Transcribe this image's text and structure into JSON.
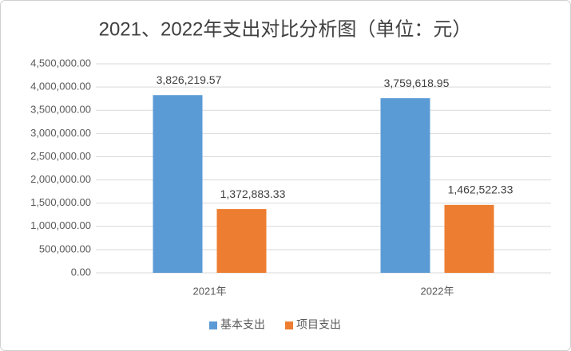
{
  "chart_data": {
    "type": "bar",
    "title": "2021、2022年支出对比分析图（单位：元）",
    "categories": [
      "2021年",
      "2022年"
    ],
    "series": [
      {
        "name": "基本支出",
        "color": "#5b9bd5",
        "values": [
          3826219.57,
          3759618.95
        ],
        "value_labels": [
          "3,826,219.57",
          "3,759,618.95"
        ]
      },
      {
        "name": "项目支出",
        "color": "#ed7d31",
        "values": [
          1372883.33,
          1462522.33
        ],
        "value_labels": [
          "1,372,883.33",
          "1,462,522.33"
        ]
      }
    ],
    "ylim": [
      0,
      4500000
    ],
    "yticks": [
      {
        "value": 0,
        "label": "0.00"
      },
      {
        "value": 500000,
        "label": "500,000.00"
      },
      {
        "value": 1000000,
        "label": "1,000,000.00"
      },
      {
        "value": 1500000,
        "label": "1,500,000.00"
      },
      {
        "value": 2000000,
        "label": "2,000,000.00"
      },
      {
        "value": 2500000,
        "label": "2,500,000.00"
      },
      {
        "value": 3000000,
        "label": "3,000,000.00"
      },
      {
        "value": 3500000,
        "label": "3,500,000.00"
      },
      {
        "value": 4000000,
        "label": "4,000,000.00"
      },
      {
        "value": 4500000,
        "label": "4,500,000.00"
      }
    ],
    "grid": true,
    "legend": "bottom"
  }
}
